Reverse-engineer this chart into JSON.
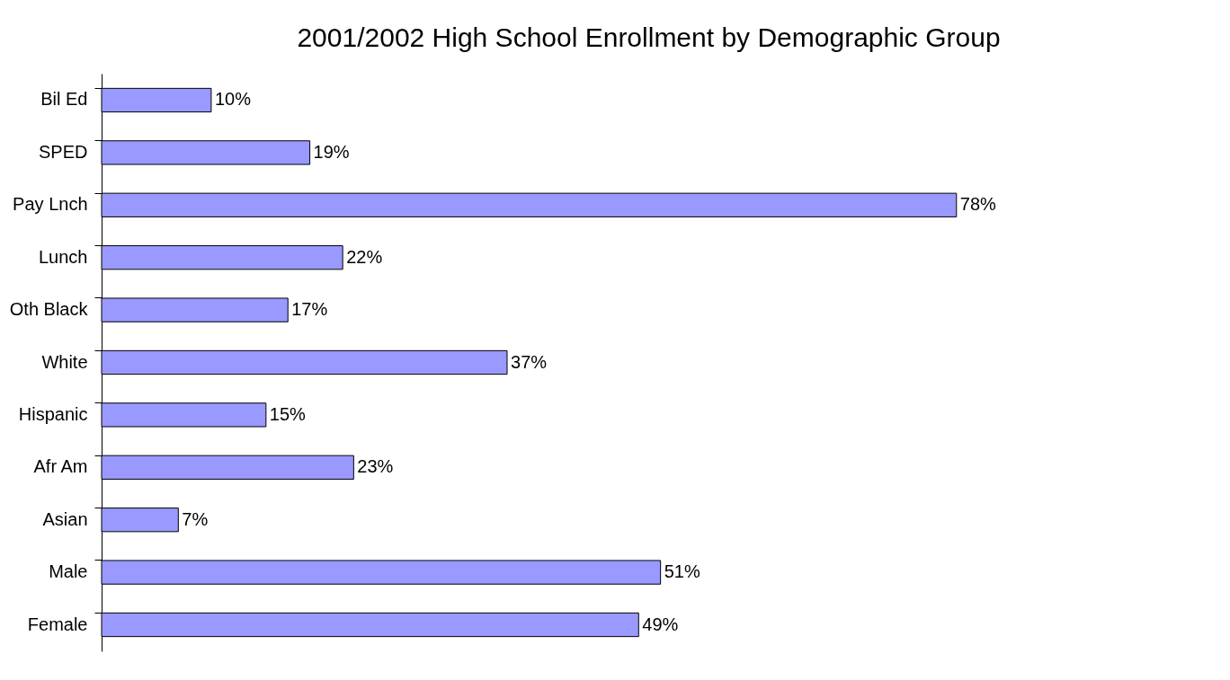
{
  "chart_data": {
    "type": "bar",
    "orientation": "horizontal",
    "title": "2001/2002 High School Enrollment by Demographic Group",
    "categories": [
      "Bil Ed",
      "SPED",
      "Pay Lnch",
      "Lunch",
      "Oth Black",
      "White",
      "Hispanic",
      "Afr Am",
      "Asian",
      "Male",
      "Female"
    ],
    "values": [
      10,
      19,
      78,
      22,
      17,
      37,
      15,
      23,
      7,
      51,
      49
    ],
    "value_labels": [
      "10%",
      "19%",
      "78%",
      "22%",
      "17%",
      "37%",
      "15%",
      "23%",
      "7%",
      "51%",
      "49%"
    ],
    "color": "#9999ff",
    "grid": false,
    "tick_labels": "y"
  }
}
